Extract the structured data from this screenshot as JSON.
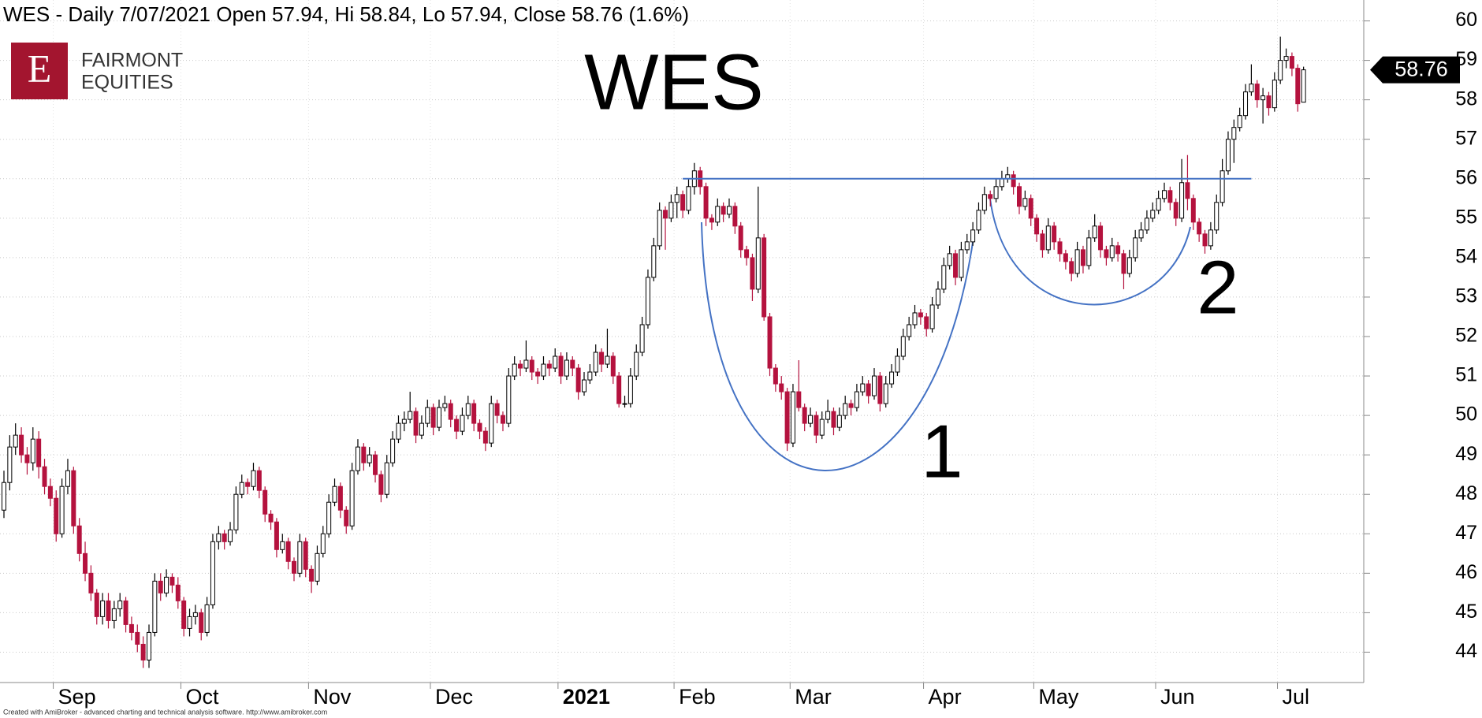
{
  "chart_data": {
    "type": "candlestick",
    "title": "WES - Daily 7/07/2021 Open 57.94, Hi 58.84, Lo 57.94, Close 58.76 (1.6%)",
    "annotations": [
      "WES",
      "1",
      "2"
    ],
    "reference_line": 56,
    "colors": {
      "up": "#ffffff",
      "down": "#b5123e",
      "outline": "#000000",
      "reference": "#4472c4",
      "tag": "#000000"
    },
    "ylim": [
      43.23,
      60.53
    ],
    "yticks": [
      44,
      45,
      46,
      47,
      48,
      49,
      50,
      51,
      52,
      53,
      54,
      55,
      56,
      57,
      58,
      59,
      60
    ],
    "grid": true,
    "categories": [
      null,
      null,
      null,
      null,
      null,
      null,
      null,
      null,
      null,
      "Sep",
      null,
      null,
      null,
      null,
      null,
      null,
      null,
      null,
      null,
      null,
      null,
      null,
      null,
      null,
      null,
      null,
      null,
      null,
      null,
      null,
      null,
      "Oct",
      null,
      null,
      null,
      null,
      null,
      null,
      null,
      null,
      null,
      null,
      null,
      null,
      null,
      null,
      null,
      null,
      null,
      null,
      null,
      null,
      null,
      "Nov",
      null,
      null,
      null,
      null,
      null,
      null,
      null,
      null,
      null,
      null,
      null,
      null,
      null,
      null,
      null,
      null,
      null,
      null,
      null,
      null,
      "Dec",
      null,
      null,
      null,
      null,
      null,
      null,
      null,
      null,
      null,
      null,
      null,
      null,
      null,
      null,
      null,
      null,
      null,
      null,
      null,
      null,
      null,
      "2021",
      null,
      null,
      null,
      null,
      null,
      null,
      null,
      null,
      null,
      null,
      null,
      null,
      null,
      null,
      null,
      null,
      null,
      null,
      null,
      "Feb",
      null,
      null,
      null,
      null,
      null,
      null,
      null,
      null,
      null,
      null,
      null,
      null,
      null,
      null,
      null,
      null,
      null,
      null,
      null,
      "Mar",
      null,
      null,
      null,
      null,
      null,
      null,
      null,
      null,
      null,
      null,
      null,
      null,
      null,
      null,
      null,
      null,
      null,
      null,
      null,
      null,
      null,
      null,
      "Apr",
      null,
      null,
      null,
      null,
      null,
      null,
      null,
      null,
      null,
      null,
      null,
      null,
      null,
      null,
      null,
      null,
      null,
      null,
      "May",
      null,
      null,
      null,
      null,
      null,
      null,
      null,
      null,
      null,
      null,
      null,
      null,
      null,
      null,
      null,
      null,
      null,
      null,
      null,
      null,
      "Jun",
      null,
      null,
      null,
      null,
      null,
      null,
      null,
      null,
      null,
      null,
      null,
      null,
      null,
      null,
      null,
      null,
      null,
      null,
      null,
      null,
      "Jul",
      null,
      null,
      null,
      null
    ],
    "ohlc": [
      [
        47.6,
        48.6,
        47.4,
        48.3
      ],
      [
        48.3,
        49.5,
        48.1,
        49.2
      ],
      [
        49.2,
        49.8,
        49.0,
        49.5
      ],
      [
        49.5,
        49.7,
        48.8,
        49.0
      ],
      [
        49.0,
        49.2,
        48.5,
        48.8
      ],
      [
        48.8,
        49.7,
        48.6,
        49.4
      ],
      [
        49.4,
        49.6,
        48.4,
        48.7
      ],
      [
        48.7,
        48.9,
        48.0,
        48.2
      ],
      [
        48.2,
        48.4,
        47.7,
        47.9
      ],
      [
        47.9,
        48.1,
        46.8,
        47.0
      ],
      [
        47.0,
        48.4,
        46.9,
        48.2
      ],
      [
        48.2,
        48.9,
        48.0,
        48.6
      ],
      [
        48.6,
        48.7,
        47.0,
        47.2
      ],
      [
        47.2,
        47.4,
        46.3,
        46.5
      ],
      [
        46.5,
        46.8,
        45.8,
        46.0
      ],
      [
        46.0,
        46.2,
        45.3,
        45.5
      ],
      [
        45.5,
        45.6,
        44.7,
        44.9
      ],
      [
        44.9,
        45.5,
        44.7,
        45.3
      ],
      [
        45.3,
        45.5,
        44.6,
        44.8
      ],
      [
        44.8,
        45.3,
        44.6,
        45.1
      ],
      [
        45.1,
        45.5,
        44.9,
        45.3
      ],
      [
        45.3,
        45.4,
        44.5,
        44.7
      ],
      [
        44.7,
        44.9,
        44.3,
        44.5
      ],
      [
        44.5,
        44.7,
        44.0,
        44.2
      ],
      [
        44.2,
        44.4,
        43.6,
        43.8
      ],
      [
        43.8,
        44.7,
        43.6,
        44.5
      ],
      [
        44.5,
        46.0,
        44.4,
        45.8
      ],
      [
        45.8,
        46.0,
        45.3,
        45.5
      ],
      [
        45.5,
        46.1,
        45.4,
        45.9
      ],
      [
        45.9,
        46.0,
        45.5,
        45.7
      ],
      [
        45.7,
        45.9,
        45.1,
        45.3
      ],
      [
        45.3,
        45.4,
        44.4,
        44.6
      ],
      [
        44.6,
        45.1,
        44.4,
        44.9
      ],
      [
        44.9,
        45.2,
        44.7,
        45.0
      ],
      [
        45.0,
        45.1,
        44.3,
        44.5
      ],
      [
        44.5,
        45.4,
        44.4,
        45.2
      ],
      [
        45.2,
        47.0,
        45.1,
        46.8
      ],
      [
        46.8,
        47.2,
        46.6,
        47.0
      ],
      [
        47.0,
        47.1,
        46.6,
        46.8
      ],
      [
        46.8,
        47.3,
        46.7,
        47.1
      ],
      [
        47.1,
        48.2,
        47.0,
        48.0
      ],
      [
        48.0,
        48.5,
        47.9,
        48.3
      ],
      [
        48.3,
        48.4,
        48.0,
        48.2
      ],
      [
        48.2,
        48.8,
        48.1,
        48.6
      ],
      [
        48.6,
        48.7,
        47.9,
        48.1
      ],
      [
        48.1,
        48.2,
        47.3,
        47.5
      ],
      [
        47.5,
        47.6,
        47.1,
        47.3
      ],
      [
        47.3,
        47.4,
        46.4,
        46.6
      ],
      [
        46.6,
        47.0,
        46.5,
        46.8
      ],
      [
        46.8,
        46.9,
        46.1,
        46.3
      ],
      [
        46.3,
        46.4,
        45.8,
        46.0
      ],
      [
        46.0,
        47.0,
        45.9,
        46.8
      ],
      [
        46.8,
        46.9,
        45.9,
        46.1
      ],
      [
        46.1,
        46.2,
        45.5,
        45.8
      ],
      [
        45.8,
        46.7,
        45.7,
        46.5
      ],
      [
        46.5,
        47.2,
        46.4,
        47.0
      ],
      [
        47.0,
        48.0,
        46.9,
        47.8
      ],
      [
        47.8,
        48.4,
        47.7,
        48.2
      ],
      [
        48.2,
        48.3,
        47.4,
        47.6
      ],
      [
        47.6,
        47.7,
        47.0,
        47.2
      ],
      [
        47.2,
        48.8,
        47.1,
        48.6
      ],
      [
        48.6,
        49.4,
        48.5,
        49.2
      ],
      [
        49.2,
        49.3,
        48.6,
        48.8
      ],
      [
        48.8,
        49.2,
        48.7,
        49.0
      ],
      [
        49.0,
        49.1,
        48.3,
        48.5
      ],
      [
        48.5,
        48.6,
        47.8,
        48.0
      ],
      [
        48.0,
        49.0,
        47.9,
        48.8
      ],
      [
        48.8,
        49.6,
        48.7,
        49.4
      ],
      [
        49.4,
        50.0,
        49.3,
        49.8
      ],
      [
        49.8,
        50.1,
        49.6,
        49.9
      ],
      [
        49.9,
        50.6,
        49.8,
        50.1
      ],
      [
        50.1,
        50.2,
        49.3,
        49.5
      ],
      [
        49.5,
        50.0,
        49.4,
        49.8
      ],
      [
        49.8,
        50.4,
        49.7,
        50.2
      ],
      [
        50.2,
        50.3,
        49.5,
        49.7
      ],
      [
        49.7,
        50.4,
        49.6,
        50.2
      ],
      [
        50.2,
        50.5,
        50.1,
        50.3
      ],
      [
        50.3,
        50.4,
        49.7,
        49.9
      ],
      [
        49.9,
        50.0,
        49.4,
        49.6
      ],
      [
        49.6,
        50.2,
        49.5,
        50.0
      ],
      [
        50.0,
        50.5,
        49.9,
        50.3
      ],
      [
        50.3,
        50.4,
        49.6,
        49.8
      ],
      [
        49.8,
        49.9,
        49.4,
        49.6
      ],
      [
        49.6,
        49.7,
        49.1,
        49.3
      ],
      [
        49.3,
        50.5,
        49.2,
        50.3
      ],
      [
        50.3,
        50.4,
        49.8,
        50.0
      ],
      [
        50.0,
        50.1,
        49.6,
        49.8
      ],
      [
        49.8,
        51.2,
        49.7,
        51.0
      ],
      [
        51.0,
        51.5,
        50.9,
        51.3
      ],
      [
        51.3,
        51.4,
        51.0,
        51.2
      ],
      [
        51.2,
        51.9,
        51.1,
        51.4
      ],
      [
        51.4,
        51.5,
        50.9,
        51.1
      ],
      [
        51.1,
        51.2,
        50.8,
        51.0
      ],
      [
        51.0,
        51.5,
        50.9,
        51.3
      ],
      [
        51.3,
        51.4,
        51.0,
        51.2
      ],
      [
        51.2,
        51.7,
        51.1,
        51.5
      ],
      [
        51.5,
        51.6,
        50.8,
        51.0
      ],
      [
        51.0,
        51.6,
        50.9,
        51.4
      ],
      [
        51.4,
        51.5,
        51.0,
        51.2
      ],
      [
        51.2,
        51.3,
        50.4,
        50.6
      ],
      [
        50.6,
        51.1,
        50.5,
        50.9
      ],
      [
        50.9,
        51.3,
        50.8,
        51.1
      ],
      [
        51.1,
        51.8,
        51.0,
        51.6
      ],
      [
        51.6,
        51.7,
        51.1,
        51.3
      ],
      [
        51.3,
        52.2,
        51.2,
        51.5
      ],
      [
        51.5,
        51.6,
        50.8,
        51.0
      ],
      [
        51.0,
        51.1,
        50.2,
        50.3
      ],
      [
        50.3,
        50.5,
        50.2,
        50.3
      ],
      [
        50.3,
        51.2,
        50.2,
        51.0
      ],
      [
        51.0,
        51.8,
        50.9,
        51.6
      ],
      [
        51.6,
        52.5,
        51.5,
        52.3
      ],
      [
        52.3,
        53.7,
        52.2,
        53.5
      ],
      [
        53.5,
        54.5,
        53.4,
        54.3
      ],
      [
        54.3,
        55.4,
        54.2,
        55.2
      ],
      [
        55.2,
        55.3,
        54.2,
        55.0
      ],
      [
        55.0,
        55.6,
        54.9,
        55.4
      ],
      [
        55.4,
        55.8,
        55.0,
        55.6
      ],
      [
        55.6,
        55.7,
        55.0,
        55.2
      ],
      [
        55.2,
        56.0,
        55.1,
        55.8
      ],
      [
        55.8,
        56.4,
        55.6,
        56.2
      ],
      [
        56.2,
        56.3,
        55.6,
        55.8
      ],
      [
        55.8,
        55.9,
        54.8,
        55.0
      ],
      [
        55.0,
        55.1,
        54.7,
        54.9
      ],
      [
        54.9,
        55.5,
        54.8,
        55.3
      ],
      [
        55.3,
        55.4,
        54.9,
        55.1
      ],
      [
        55.1,
        55.5,
        55.0,
        55.3
      ],
      [
        55.3,
        55.4,
        54.6,
        54.8
      ],
      [
        54.8,
        54.9,
        54.0,
        54.2
      ],
      [
        54.2,
        54.3,
        53.8,
        54.0
      ],
      [
        54.0,
        54.1,
        52.9,
        53.2
      ],
      [
        53.2,
        55.8,
        53.1,
        54.5
      ],
      [
        54.5,
        54.6,
        52.4,
        52.5
      ],
      [
        52.5,
        52.6,
        51.0,
        51.2
      ],
      [
        51.2,
        51.3,
        50.6,
        50.8
      ],
      [
        50.8,
        51.0,
        50.4,
        50.6
      ],
      [
        50.6,
        50.7,
        49.1,
        49.3
      ],
      [
        49.3,
        50.8,
        49.2,
        50.6
      ],
      [
        50.6,
        51.4,
        50.1,
        50.2
      ],
      [
        50.2,
        50.3,
        49.6,
        49.8
      ],
      [
        49.8,
        50.2,
        49.7,
        50.0
      ],
      [
        50.0,
        50.1,
        49.3,
        49.5
      ],
      [
        49.5,
        50.1,
        49.4,
        49.9
      ],
      [
        49.9,
        50.4,
        49.8,
        50.1
      ],
      [
        50.1,
        50.2,
        49.5,
        49.7
      ],
      [
        49.7,
        50.2,
        49.6,
        50.0
      ],
      [
        50.0,
        50.5,
        49.9,
        50.3
      ],
      [
        50.3,
        50.4,
        50.0,
        50.2
      ],
      [
        50.2,
        50.8,
        50.1,
        50.6
      ],
      [
        50.6,
        51.0,
        50.5,
        50.8
      ],
      [
        50.8,
        50.9,
        50.3,
        50.5
      ],
      [
        50.5,
        51.2,
        50.4,
        51.0
      ],
      [
        51.0,
        51.1,
        50.1,
        50.3
      ],
      [
        50.3,
        51.0,
        50.2,
        50.8
      ],
      [
        50.8,
        51.3,
        50.7,
        51.1
      ],
      [
        51.1,
        51.7,
        51.0,
        51.5
      ],
      [
        51.5,
        52.2,
        51.4,
        52.0
      ],
      [
        52.0,
        52.5,
        51.9,
        52.3
      ],
      [
        52.3,
        52.8,
        52.2,
        52.6
      ],
      [
        52.6,
        52.7,
        52.3,
        52.5
      ],
      [
        52.5,
        52.6,
        52.0,
        52.2
      ],
      [
        52.2,
        53.0,
        52.1,
        52.8
      ],
      [
        52.8,
        53.4,
        52.7,
        53.2
      ],
      [
        53.2,
        54.0,
        53.1,
        53.8
      ],
      [
        53.8,
        54.3,
        53.7,
        54.1
      ],
      [
        54.1,
        54.2,
        53.3,
        53.5
      ],
      [
        53.5,
        54.4,
        53.4,
        54.2
      ],
      [
        54.2,
        54.6,
        54.1,
        54.4
      ],
      [
        54.4,
        54.9,
        54.3,
        54.7
      ],
      [
        54.7,
        55.4,
        54.6,
        55.2
      ],
      [
        55.2,
        55.8,
        55.1,
        55.6
      ],
      [
        55.6,
        55.7,
        55.3,
        55.5
      ],
      [
        55.5,
        56.0,
        55.4,
        55.8
      ],
      [
        55.8,
        56.2,
        55.7,
        56.0
      ],
      [
        56.0,
        56.3,
        55.9,
        56.1
      ],
      [
        56.1,
        56.2,
        55.6,
        55.8
      ],
      [
        55.8,
        55.9,
        55.1,
        55.3
      ],
      [
        55.3,
        55.7,
        55.2,
        55.5
      ],
      [
        55.5,
        55.6,
        54.8,
        55.0
      ],
      [
        55.0,
        55.1,
        54.4,
        54.6
      ],
      [
        54.6,
        54.7,
        54.0,
        54.2
      ],
      [
        54.2,
        55.0,
        54.1,
        54.8
      ],
      [
        54.8,
        54.9,
        54.2,
        54.4
      ],
      [
        54.4,
        54.5,
        53.9,
        54.1
      ],
      [
        54.1,
        54.2,
        53.7,
        53.9
      ],
      [
        53.9,
        54.0,
        53.4,
        53.6
      ],
      [
        53.6,
        54.4,
        53.5,
        54.2
      ],
      [
        54.2,
        54.3,
        53.6,
        53.8
      ],
      [
        53.8,
        54.7,
        53.7,
        54.5
      ],
      [
        54.5,
        55.1,
        54.4,
        54.8
      ],
      [
        54.8,
        54.9,
        54.0,
        54.2
      ],
      [
        54.2,
        54.3,
        53.8,
        54.0
      ],
      [
        54.0,
        54.5,
        53.9,
        54.3
      ],
      [
        54.3,
        54.4,
        53.9,
        54.1
      ],
      [
        54.1,
        54.2,
        53.2,
        53.6
      ],
      [
        53.6,
        54.2,
        53.5,
        54.0
      ],
      [
        54.0,
        54.7,
        53.9,
        54.5
      ],
      [
        54.5,
        54.9,
        54.4,
        54.7
      ],
      [
        54.7,
        55.2,
        54.6,
        55.0
      ],
      [
        55.0,
        55.4,
        54.9,
        55.2
      ],
      [
        55.2,
        55.7,
        55.1,
        55.5
      ],
      [
        55.5,
        55.9,
        55.4,
        55.7
      ],
      [
        55.7,
        55.8,
        55.2,
        55.4
      ],
      [
        55.4,
        55.5,
        54.8,
        55.0
      ],
      [
        55.0,
        56.5,
        54.9,
        55.9
      ],
      [
        55.9,
        56.6,
        55.2,
        55.5
      ],
      [
        55.5,
        55.6,
        54.7,
        54.9
      ],
      [
        54.9,
        55.0,
        54.4,
        54.6
      ],
      [
        54.6,
        54.7,
        54.1,
        54.3
      ],
      [
        54.3,
        54.9,
        54.2,
        54.7
      ],
      [
        54.7,
        55.6,
        54.6,
        55.4
      ],
      [
        55.4,
        56.5,
        55.3,
        56.2
      ],
      [
        56.2,
        57.2,
        56.1,
        57.0
      ],
      [
        57.0,
        57.5,
        56.4,
        57.3
      ],
      [
        57.3,
        57.8,
        57.2,
        57.6
      ],
      [
        57.6,
        58.4,
        57.5,
        58.2
      ],
      [
        58.2,
        58.9,
        58.1,
        58.4
      ],
      [
        58.4,
        58.5,
        57.8,
        58.0
      ],
      [
        58.0,
        58.3,
        57.4,
        58.1
      ],
      [
        58.1,
        58.2,
        57.6,
        57.8
      ],
      [
        57.8,
        58.7,
        57.7,
        58.5
      ],
      [
        58.5,
        59.6,
        58.4,
        59.0
      ],
      [
        59.0,
        59.3,
        58.8,
        59.1
      ],
      [
        59.1,
        59.2,
        58.6,
        58.8
      ],
      [
        58.8,
        58.9,
        57.7,
        57.9
      ],
      [
        57.94,
        58.84,
        57.94,
        58.76
      ]
    ]
  },
  "logo": {
    "initial": "E",
    "lines": [
      "FAIRMONT",
      "EQUITIES"
    ]
  },
  "footer": "Created with AmiBroker - advanced charting and technical analysis software. http://www.amibroker.com"
}
